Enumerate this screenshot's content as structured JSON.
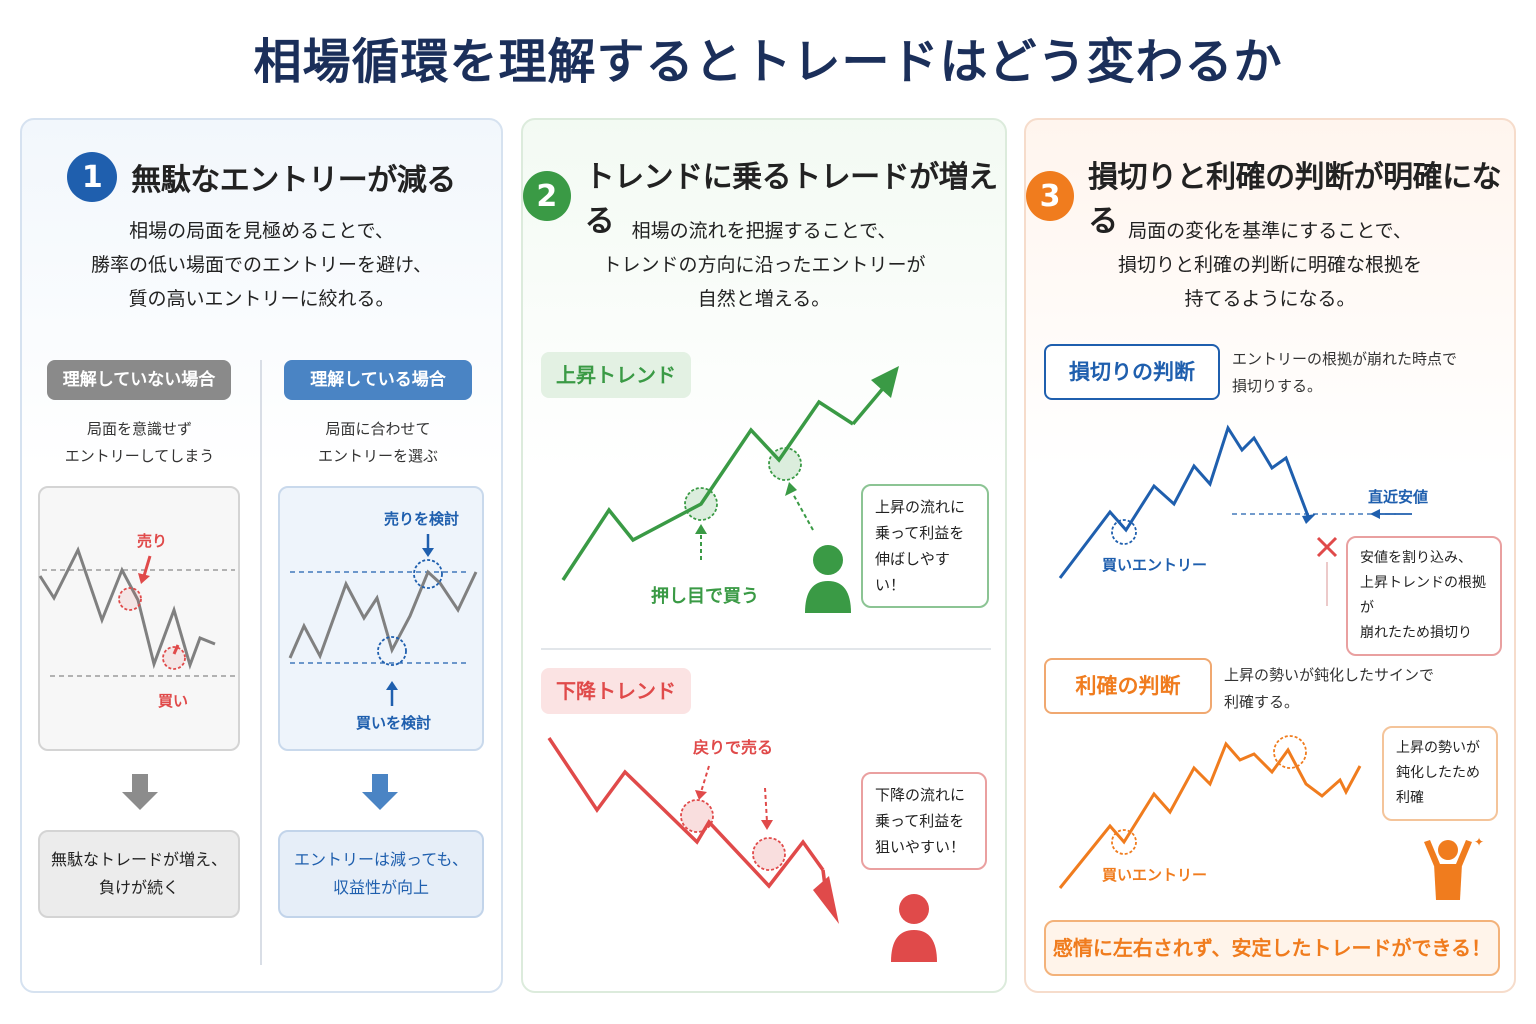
{
  "title": "相場循環を理解するとトレードはどう変わるか",
  "colors": {
    "blue": "#1f5fae",
    "green": "#3a9a45",
    "orange": "#f07c1e",
    "red": "#e04a4a",
    "navy": "#1b2f5a"
  },
  "panel1": {
    "number": "1",
    "heading": "無駄なエントリーが減る",
    "desc": [
      "相場の局面を見極めることで、",
      "勝率の低い場面でのエントリーを避け、",
      "質の高いエントリーに絞れる。"
    ],
    "left": {
      "tag": "理解していない場合",
      "caption": [
        "局面を意識せず",
        "エントリーしてしまう"
      ],
      "sell_label": "売り",
      "buy_label": "買い",
      "result": [
        "無駄なトレードが増え、",
        "負けが続く"
      ]
    },
    "right": {
      "tag": "理解している場合",
      "caption": [
        "局面に合わせて",
        "エントリーを選ぶ"
      ],
      "sell_label": "売りを検討",
      "buy_label": "買いを検討",
      "result": [
        "エントリーは減っても、",
        "収益性が向上"
      ]
    }
  },
  "panel2": {
    "number": "2",
    "heading": "トレンドに乗るトレードが増える",
    "desc": [
      "相場の流れを把握することで、",
      "トレンドの方向に沿ったエントリーが",
      "自然と増える。"
    ],
    "up": {
      "tag": "上昇トレンド",
      "point_label": "押し目で買う",
      "bubble": [
        "上昇の流れに",
        "乗って利益を",
        "伸ばしやすい！"
      ]
    },
    "down": {
      "tag": "下降トレンド",
      "point_label": "戻りで売る",
      "bubble": [
        "下降の流れに",
        "乗って利益を",
        "狙いやすい！"
      ]
    }
  },
  "panel3": {
    "number": "3",
    "heading": "損切りと利確の判断が明確になる",
    "desc": [
      "局面の変化を基準にすることで、",
      "損切りと利確の判断に明確な根拠を",
      "持てるようになる。"
    ],
    "stop": {
      "tag": "損切りの判断",
      "note": [
        "エントリーの根拠が崩れた時点で",
        "損切りする。"
      ],
      "support_label": "直近安値",
      "entry_label": "買いエントリー",
      "bubble": [
        "安値を割り込み、",
        "上昇トレンドの根拠が",
        "崩れたため損切り"
      ]
    },
    "profit": {
      "tag": "利確の判断",
      "note": [
        "上昇の勢いが鈍化したサインで",
        "利確する。"
      ],
      "entry_label": "買いエントリー",
      "bubble": [
        "上昇の勢いが",
        "鈍化したため",
        "利確"
      ]
    },
    "footer": "感情に左右されず、安定したトレードができる！"
  }
}
